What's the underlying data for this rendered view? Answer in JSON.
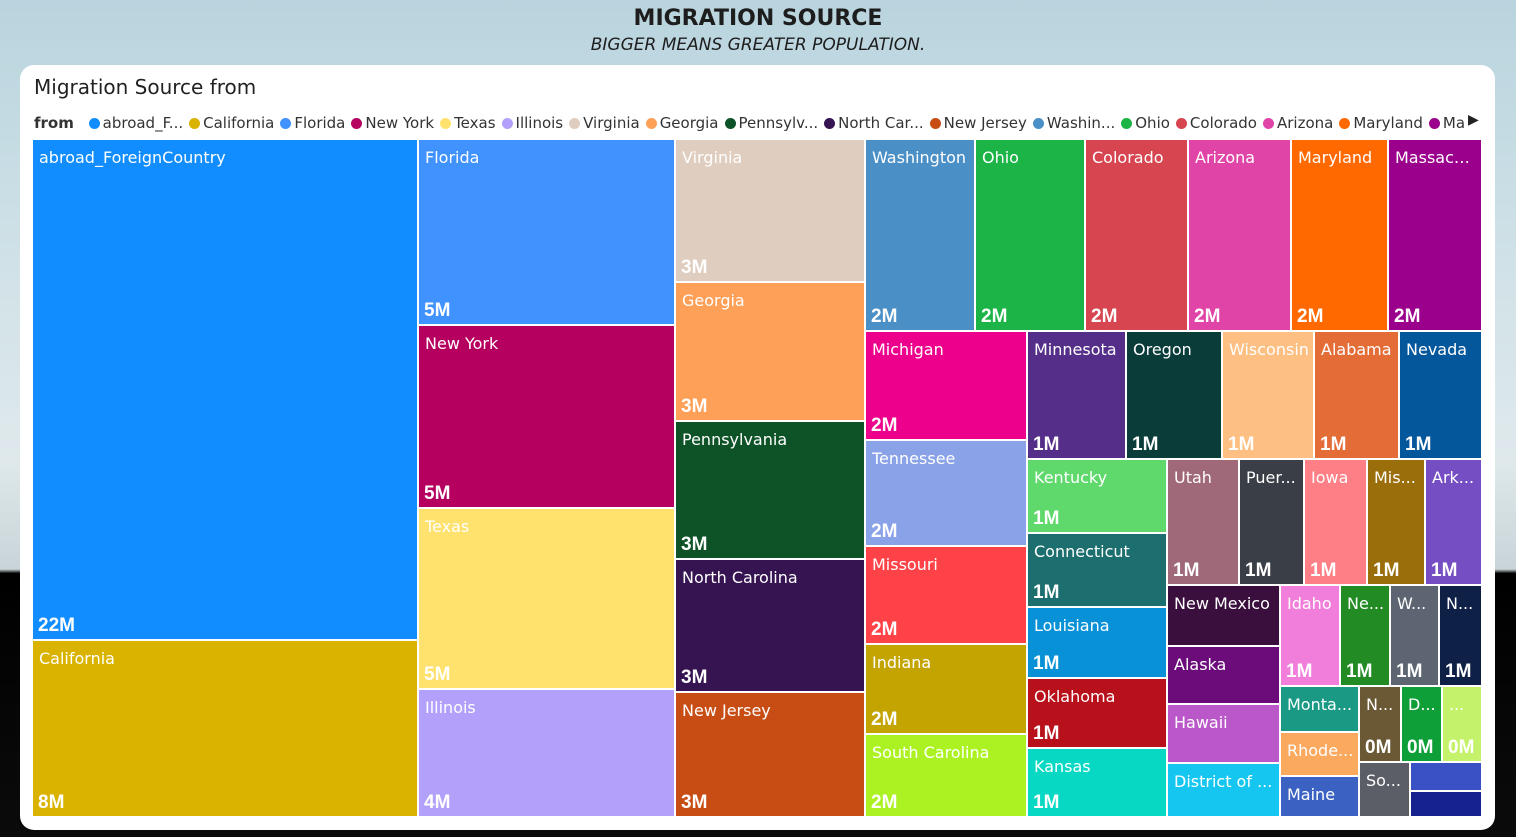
{
  "page": {
    "title": "MIGRATION SOURCE",
    "subtitle": "BIGGER MEANS GREATER POPULATION."
  },
  "legend": {
    "label": "from",
    "items": [
      {
        "name": "abroad_F...",
        "color": "#118DFF"
      },
      {
        "name": "California",
        "color": "#D9B300"
      },
      {
        "name": "Florida",
        "color": "#4092FF"
      },
      {
        "name": "New York",
        "color": "#B5005F"
      },
      {
        "name": "Texas",
        "color": "#FFE26E"
      },
      {
        "name": "Illinois",
        "color": "#B3A0FB"
      },
      {
        "name": "Virginia",
        "color": "#DFCEBF"
      },
      {
        "name": "Georgia",
        "color": "#FFA058"
      },
      {
        "name": "Pennsylv...",
        "color": "#0E5327"
      },
      {
        "name": "North Car...",
        "color": "#361452"
      },
      {
        "name": "New Jersey",
        "color": "#C84D14"
      },
      {
        "name": "Washin...",
        "color": "#4A8FC6"
      },
      {
        "name": "Ohio",
        "color": "#1CB447"
      },
      {
        "name": "Colorado",
        "color": "#D64550"
      },
      {
        "name": "Arizona",
        "color": "#E044A7"
      },
      {
        "name": "Maryland",
        "color": "#FF6900"
      },
      {
        "name": "Massac...",
        "color": "#9B008C"
      }
    ]
  },
  "chart_data": {
    "type": "treemap",
    "title": "Migration Source from",
    "subtitle": "",
    "xlabel": "",
    "ylabel": "",
    "items": [
      {
        "label": "abroad_ForeignCountry",
        "value": "22M",
        "color": "#118DFF"
      },
      {
        "label": "California",
        "value": "8M",
        "color": "#D9B300"
      },
      {
        "label": "Florida",
        "value": "5M",
        "color": "#4092FF"
      },
      {
        "label": "New York",
        "value": "5M",
        "color": "#B5005F"
      },
      {
        "label": "Texas",
        "value": "5M",
        "color": "#FFE26E"
      },
      {
        "label": "Illinois",
        "value": "4M",
        "color": "#B3A0FB"
      },
      {
        "label": "Virginia",
        "value": "3M",
        "color": "#DFCEBF"
      },
      {
        "label": "Georgia",
        "value": "3M",
        "color": "#FFA058"
      },
      {
        "label": "Pennsylvania",
        "value": "3M",
        "color": "#0E5327"
      },
      {
        "label": "North Carolina",
        "value": "3M",
        "color": "#361452"
      },
      {
        "label": "New Jersey",
        "value": "3M",
        "color": "#C84D14"
      },
      {
        "label": "Washington",
        "value": "2M",
        "color": "#4A8FC6"
      },
      {
        "label": "Ohio",
        "value": "2M",
        "color": "#1CB447"
      },
      {
        "label": "Colorado",
        "value": "2M",
        "color": "#D64550"
      },
      {
        "label": "Arizona",
        "value": "2M",
        "color": "#E044A7"
      },
      {
        "label": "Maryland",
        "value": "2M",
        "color": "#FF6900"
      },
      {
        "label": "Massach...",
        "value": "2M",
        "color": "#9B008C"
      },
      {
        "label": "Michigan",
        "value": "2M",
        "color": "#EC008C"
      },
      {
        "label": "Tennessee",
        "value": "2M",
        "color": "#8AA2E8"
      },
      {
        "label": "Missouri",
        "value": "2M",
        "color": "#FF4248"
      },
      {
        "label": "Indiana",
        "value": "2M",
        "color": "#C4A400"
      },
      {
        "label": "South Carolina",
        "value": "2M",
        "color": "#ACF222"
      },
      {
        "label": "Minnesota",
        "value": "1M",
        "color": "#542E88"
      },
      {
        "label": "Oregon",
        "value": "1M",
        "color": "#0A3D3A"
      },
      {
        "label": "Wisconsin",
        "value": "1M",
        "color": "#FDBF82"
      },
      {
        "label": "Alabama",
        "value": "1M",
        "color": "#E46C37"
      },
      {
        "label": "Nevada",
        "value": "1M",
        "color": "#05579C"
      },
      {
        "label": "Kentucky",
        "value": "1M",
        "color": "#5FD86C"
      },
      {
        "label": "Connecticut",
        "value": "1M",
        "color": "#1C6E6F"
      },
      {
        "label": "Louisiana",
        "value": "1M",
        "color": "#0891D6"
      },
      {
        "label": "Oklahoma",
        "value": "1M",
        "color": "#B8111B"
      },
      {
        "label": "Kansas",
        "value": "1M",
        "color": "#07D8C4"
      },
      {
        "label": "Utah",
        "value": "1M",
        "color": "#A0697A"
      },
      {
        "label": "Puer...",
        "value": "1M",
        "color": "#3A3E47"
      },
      {
        "label": "Iowa",
        "value": "1M",
        "color": "#FF7F86"
      },
      {
        "label": "Mis...",
        "value": "1M",
        "color": "#9A6E0B"
      },
      {
        "label": "Ark...",
        "value": "1M",
        "color": "#744EC2"
      },
      {
        "label": "New Mexico",
        "value": "",
        "color": "#3A0E3D"
      },
      {
        "label": "Alaska",
        "value": "",
        "color": "#6B0C7A"
      },
      {
        "label": "Hawaii",
        "value": "",
        "color": "#BB58C9"
      },
      {
        "label": "District of ...",
        "value": "",
        "color": "#14C6F0"
      },
      {
        "label": "Idaho",
        "value": "1M",
        "color": "#F17EDA"
      },
      {
        "label": "Ne...",
        "value": "1M",
        "color": "#238B23"
      },
      {
        "label": "W...",
        "value": "1M",
        "color": "#5C6571"
      },
      {
        "label": "N...",
        "value": "1M",
        "color": "#0F2046"
      },
      {
        "label": "Monta...",
        "value": "",
        "color": "#1A9A84"
      },
      {
        "label": "Rhode...",
        "value": "",
        "color": "#FCA960"
      },
      {
        "label": "Maine",
        "value": "",
        "color": "#3B62C2"
      },
      {
        "label": "N...",
        "value": "0M",
        "color": "#6B5834"
      },
      {
        "label": "D...",
        "value": "0M",
        "color": "#0F9F38"
      },
      {
        "label": "...",
        "value": "0M",
        "color": "#C4F36B"
      },
      {
        "label": "So...",
        "value": "",
        "color": "#5B5E66"
      },
      {
        "label": "",
        "value": "",
        "color": "#3951C4"
      },
      {
        "label": "",
        "value": "",
        "color": "#152290"
      }
    ]
  }
}
